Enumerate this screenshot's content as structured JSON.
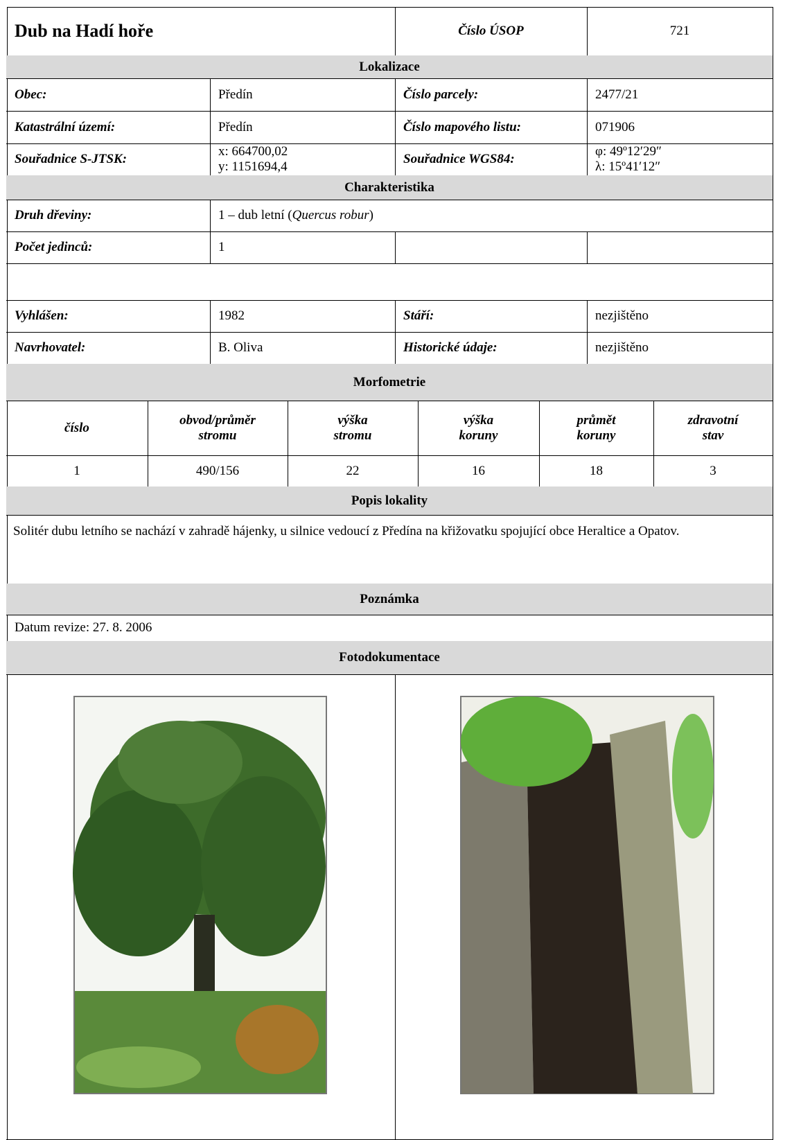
{
  "header": {
    "title": "Dub na Hadí hoře",
    "usop_label": "Číslo ÚSOP",
    "usop_value": "721"
  },
  "lokalizace": {
    "heading": "Lokalizace",
    "rows": [
      [
        "Obec:",
        "Předín",
        "Číslo parcely:",
        "2477/21"
      ],
      [
        "Katastrální území:",
        "Předín",
        "Číslo mapového listu:",
        "071906"
      ],
      [
        "Souřadnice S-JTSK:",
        [
          "x: 664700,02",
          "y: 1151694,4"
        ],
        "Souřadnice WGS84:",
        [
          "φ: 49º12′29″",
          "λ: 15º41′12″"
        ]
      ]
    ]
  },
  "charakteristika": {
    "heading": "Charakteristika",
    "druh_label": "Druh dřeviny:",
    "druh_value": [
      "1 – dub letní (",
      "Quercus robur",
      ")"
    ],
    "pocet_label": "Počet jedinců:",
    "pocet_value": "1",
    "rows": [
      [
        "Vyhlášen:",
        "1982",
        "Stáří:",
        "nezjištěno"
      ],
      [
        "Navrhovatel:",
        "B. Oliva",
        "Historické údaje:",
        "nezjištěno"
      ]
    ]
  },
  "morfometrie": {
    "heading": "Morfometrie",
    "columns": [
      [
        "číslo"
      ],
      [
        "obvod/průměr",
        "stromu"
      ],
      [
        "výška",
        "stromu"
      ],
      [
        "výška",
        "koruny"
      ],
      [
        "průmět",
        "koruny"
      ],
      [
        "zdravotní",
        "stav"
      ]
    ],
    "values": [
      "1",
      "490/156",
      "22",
      "16",
      "18",
      "3"
    ]
  },
  "popis": {
    "heading": "Popis lokality",
    "text": "Solitér dubu letního se nachází v zahradě hájenky, u silnice vedoucí z Předína na křižovatku spojující obce Heraltice a Opatov."
  },
  "poznamka": {
    "heading": "Poznámka",
    "text": "Datum revize: 27. 8. 2006"
  },
  "foto": {
    "heading": "Fotodokumentace"
  }
}
